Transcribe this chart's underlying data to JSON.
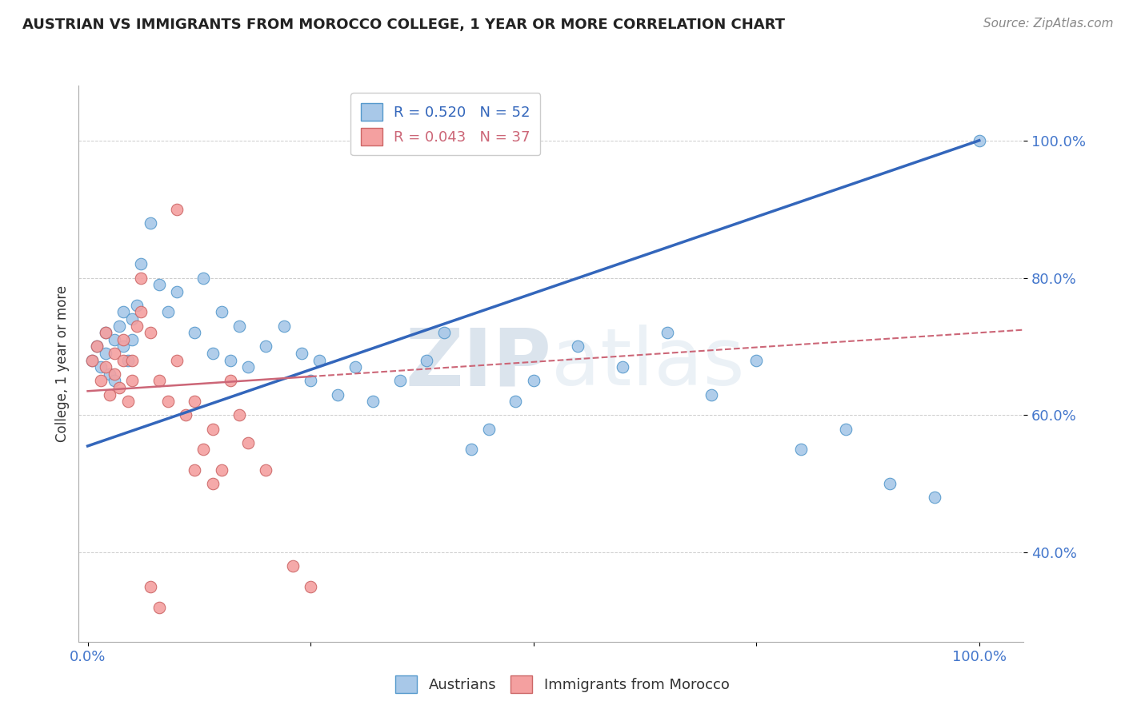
{
  "title": "AUSTRIAN VS IMMIGRANTS FROM MOROCCO COLLEGE, 1 YEAR OR MORE CORRELATION CHART",
  "source": "Source: ZipAtlas.com",
  "ylabel_label": "College, 1 year or more",
  "legend_label1": "Austrians",
  "legend_label2": "Immigrants from Morocco",
  "r1": "0.520",
  "n1": "52",
  "r2": "0.043",
  "n2": "37",
  "blue_fill": "#a8c8e8",
  "blue_edge": "#5599cc",
  "pink_fill": "#f4a0a0",
  "pink_edge": "#cc6666",
  "blue_line_color": "#3366bb",
  "pink_line_color": "#cc6677",
  "watermark_color": "#d0dce8",
  "background_color": "#ffffff",
  "grid_color": "#cccccc",
  "tick_color": "#4477cc",
  "austrians_x": [
    0.005,
    0.01,
    0.015,
    0.02,
    0.025,
    0.02,
    0.03,
    0.03,
    0.035,
    0.04,
    0.04,
    0.045,
    0.05,
    0.05,
    0.055,
    0.06,
    0.07,
    0.08,
    0.09,
    0.1,
    0.12,
    0.13,
    0.14,
    0.15,
    0.16,
    0.17,
    0.18,
    0.2,
    0.22,
    0.24,
    0.25,
    0.26,
    0.28,
    0.3,
    0.32,
    0.35,
    0.38,
    0.4,
    0.43,
    0.45,
    0.48,
    0.5,
    0.55,
    0.6,
    0.65,
    0.7,
    0.75,
    0.8,
    0.85,
    0.9,
    0.95,
    1.0
  ],
  "austrians_y": [
    0.68,
    0.7,
    0.67,
    0.72,
    0.66,
    0.69,
    0.65,
    0.71,
    0.73,
    0.7,
    0.75,
    0.68,
    0.74,
    0.71,
    0.76,
    0.82,
    0.88,
    0.79,
    0.75,
    0.78,
    0.72,
    0.8,
    0.69,
    0.75,
    0.68,
    0.73,
    0.67,
    0.7,
    0.73,
    0.69,
    0.65,
    0.68,
    0.63,
    0.67,
    0.62,
    0.65,
    0.68,
    0.72,
    0.55,
    0.58,
    0.62,
    0.65,
    0.7,
    0.67,
    0.72,
    0.63,
    0.68,
    0.55,
    0.58,
    0.5,
    0.48,
    1.0
  ],
  "morocco_x": [
    0.005,
    0.01,
    0.015,
    0.02,
    0.02,
    0.025,
    0.03,
    0.03,
    0.035,
    0.04,
    0.04,
    0.045,
    0.05,
    0.05,
    0.055,
    0.06,
    0.06,
    0.07,
    0.08,
    0.09,
    0.1,
    0.11,
    0.12,
    0.13,
    0.14,
    0.15,
    0.16,
    0.17,
    0.18,
    0.2,
    0.23,
    0.25,
    0.1,
    0.12,
    0.14,
    0.07,
    0.08
  ],
  "morocco_y": [
    0.68,
    0.7,
    0.65,
    0.67,
    0.72,
    0.63,
    0.66,
    0.69,
    0.64,
    0.68,
    0.71,
    0.62,
    0.65,
    0.68,
    0.73,
    0.8,
    0.75,
    0.72,
    0.65,
    0.62,
    0.68,
    0.6,
    0.62,
    0.55,
    0.58,
    0.52,
    0.65,
    0.6,
    0.56,
    0.52,
    0.38,
    0.35,
    0.9,
    0.52,
    0.5,
    0.35,
    0.32
  ],
  "blue_line_x": [
    0.0,
    1.0
  ],
  "blue_line_y": [
    0.555,
    1.0
  ],
  "pink_line_x": [
    0.0,
    1.0
  ],
  "pink_line_y": [
    0.635,
    0.72
  ],
  "xlim": [
    -0.01,
    1.05
  ],
  "ylim": [
    0.27,
    1.08
  ],
  "yticks": [
    0.4,
    0.6,
    0.8,
    1.0
  ],
  "ytick_labels": [
    "40.0%",
    "60.0%",
    "80.0%",
    "100.0%"
  ],
  "xticks": [
    0.0,
    0.25,
    0.5,
    0.75,
    1.0
  ],
  "xtick_labels": [
    "0.0%",
    "",
    "",
    "",
    "100.0%"
  ]
}
